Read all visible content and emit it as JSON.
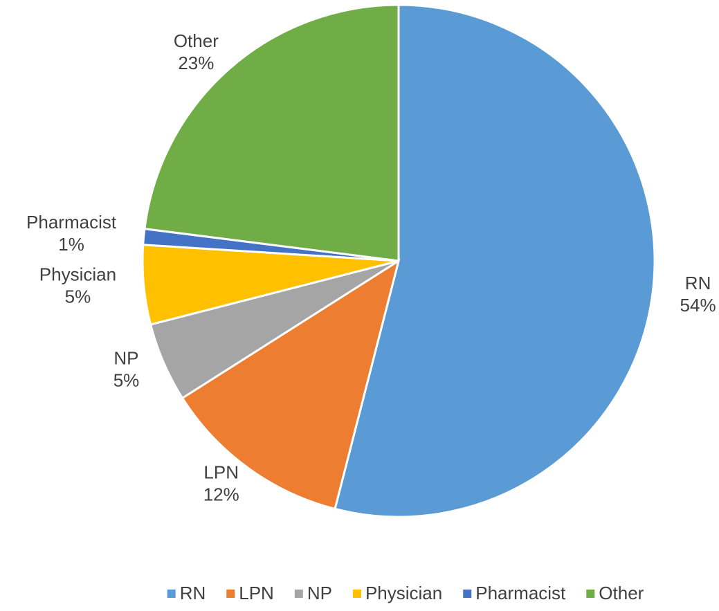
{
  "chart_data": {
    "type": "pie",
    "categories": [
      "RN",
      "LPN",
      "NP",
      "Physician",
      "Pharmacist",
      "Other"
    ],
    "values": [
      54,
      12,
      5,
      5,
      1,
      23
    ],
    "value_labels": [
      "54%",
      "12%",
      "5%",
      "5%",
      "1%",
      "23%"
    ],
    "colors": [
      "#5b9bd5",
      "#ed7d31",
      "#a5a5a5",
      "#ffc000",
      "#4472c4",
      "#70ad47"
    ],
    "legend": "bottom"
  }
}
